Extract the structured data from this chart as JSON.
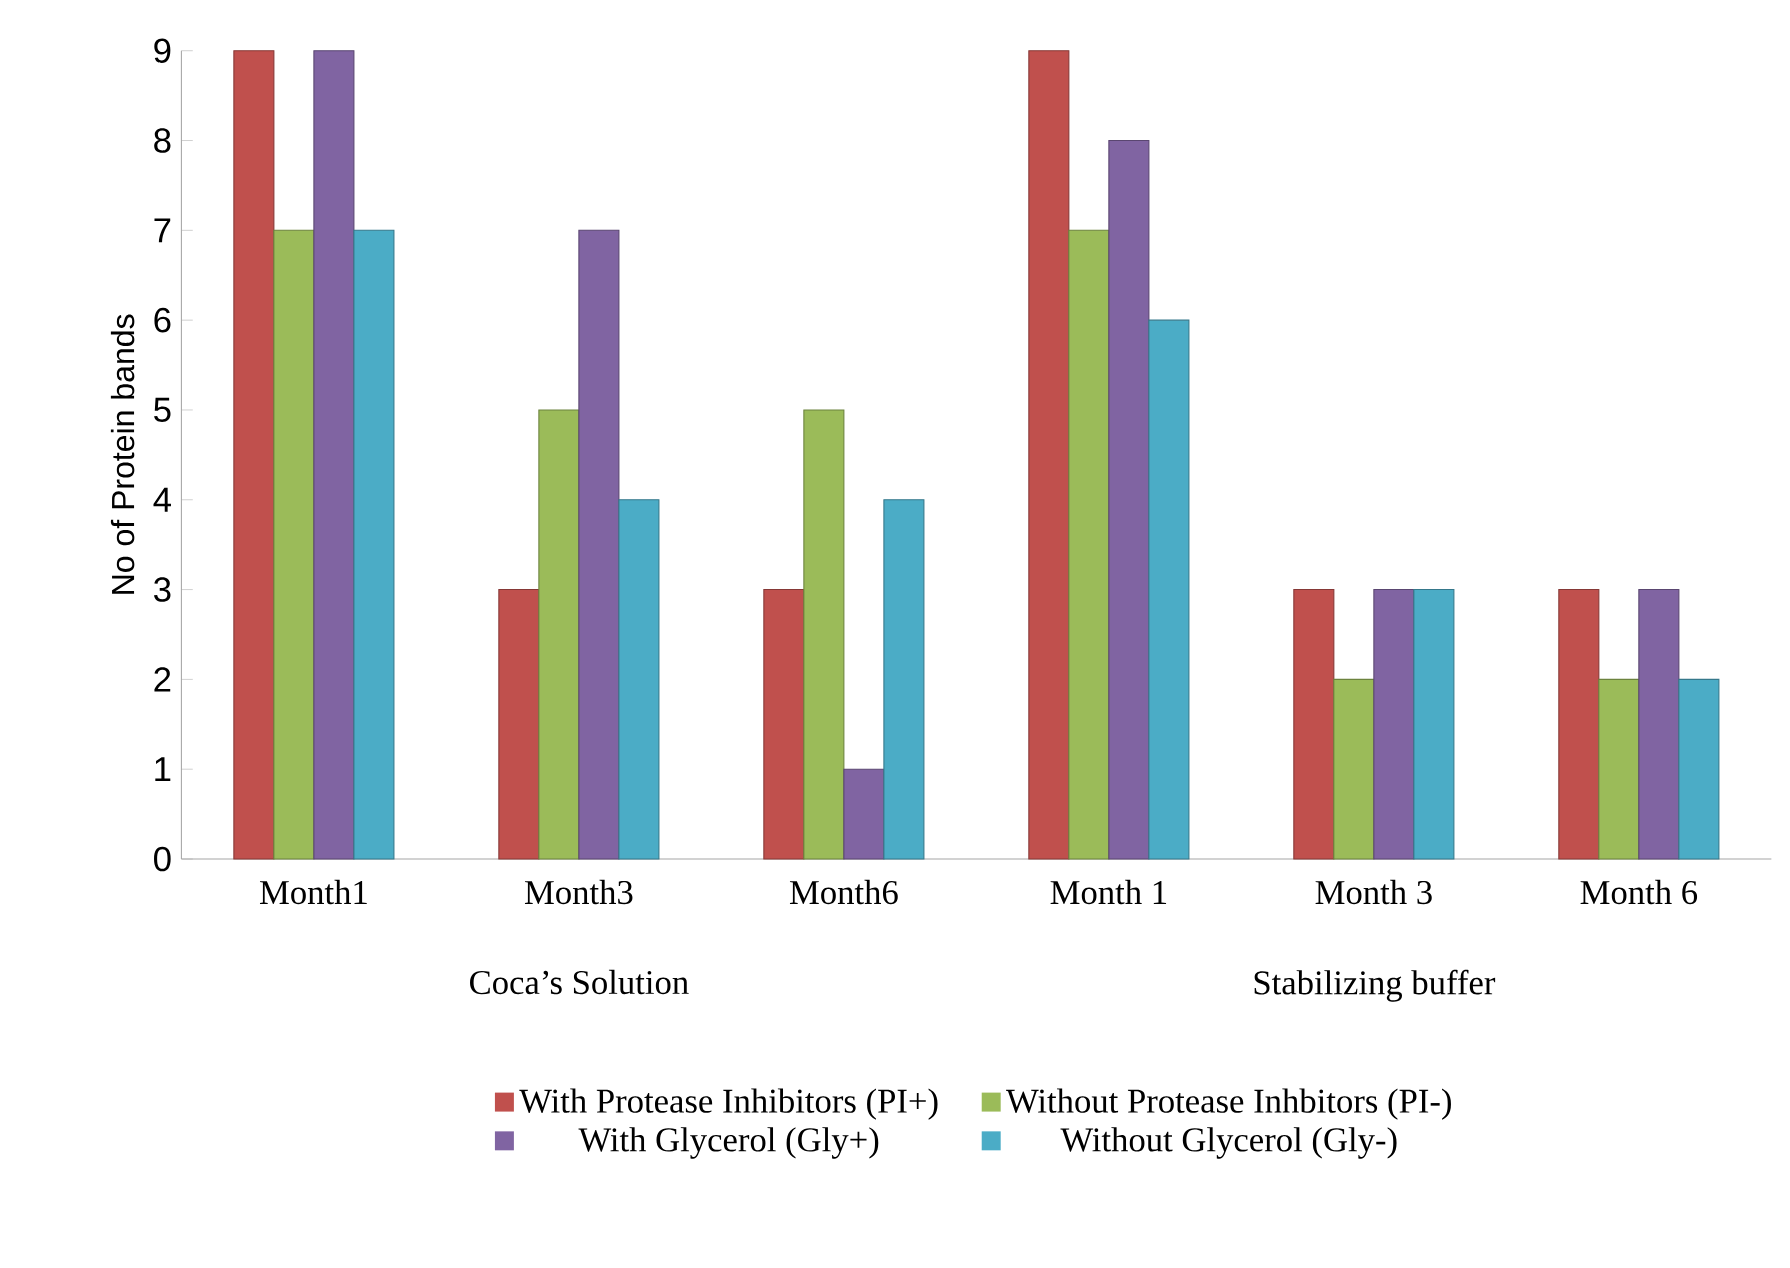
{
  "chart_data": {
    "type": "bar",
    "ylabel": "No of Protein bands",
    "categories": [
      "Month1",
      "Month3",
      "Month6",
      "Month 1",
      "Month 3",
      "Month 6"
    ],
    "series": [
      {
        "name": "With Protease Inhibitors (PI+)",
        "color": "#c0504d",
        "values": [
          9,
          3,
          3,
          9,
          3,
          3
        ]
      },
      {
        "name": "Without Protease Inhbitors (PI-)",
        "color": "#9bbb59",
        "values": [
          7,
          5,
          5,
          7,
          2,
          2
        ]
      },
      {
        "name": "With Glycerol (Gly+)",
        "color": "#8064a2",
        "values": [
          9,
          7,
          1,
          8,
          3,
          3
        ]
      },
      {
        "name": "Without Glycerol (Gly-)",
        "color": "#4bacc6",
        "values": [
          7,
          4,
          4,
          6,
          3,
          2
        ]
      }
    ],
    "annotations": [
      "Coca’s Solution",
      "Stabilizing buffer"
    ],
    "ylim": [
      0,
      9
    ],
    "yticks": [
      0,
      1,
      2,
      3,
      4,
      5,
      6,
      7,
      8,
      9
    ],
    "grid": false,
    "legend": "bottom"
  }
}
